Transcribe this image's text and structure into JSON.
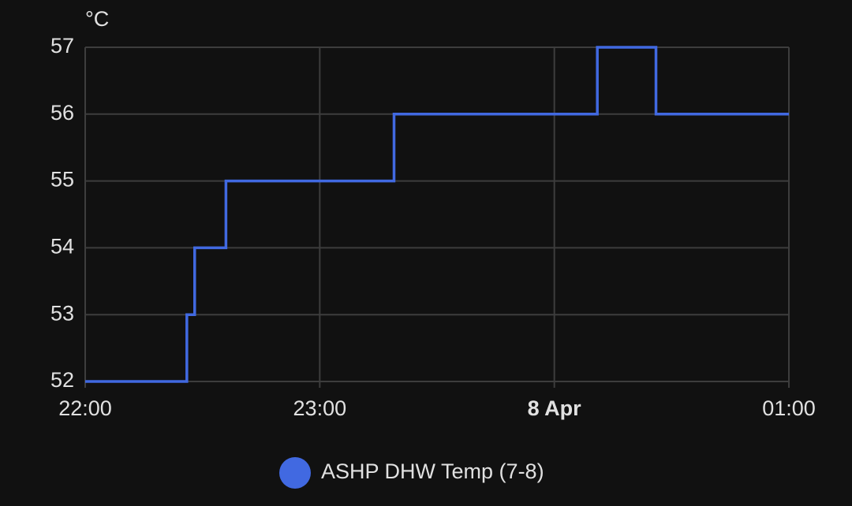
{
  "chart_data": {
    "type": "line",
    "step": true,
    "y_unit": "°C",
    "x": [
      "22:00",
      "22:26",
      "22:28",
      "22:36",
      "23:19",
      "00:11",
      "00:26",
      "01:00"
    ],
    "series": [
      {
        "name": "ASHP DHW Temp (7-8)",
        "color": "#4169e1",
        "values": [
          52,
          53,
          54,
          55,
          56,
          57,
          56,
          56
        ]
      }
    ],
    "xlim": [
      "22:00",
      "01:00"
    ],
    "xticks": [
      "22:00",
      "23:00",
      {
        "value": "00:00",
        "label": "8 Apr"
      },
      "01:00"
    ],
    "ylim": [
      52,
      57
    ],
    "yticks": [
      52,
      53,
      54,
      55,
      56,
      57
    ],
    "grid": true
  }
}
